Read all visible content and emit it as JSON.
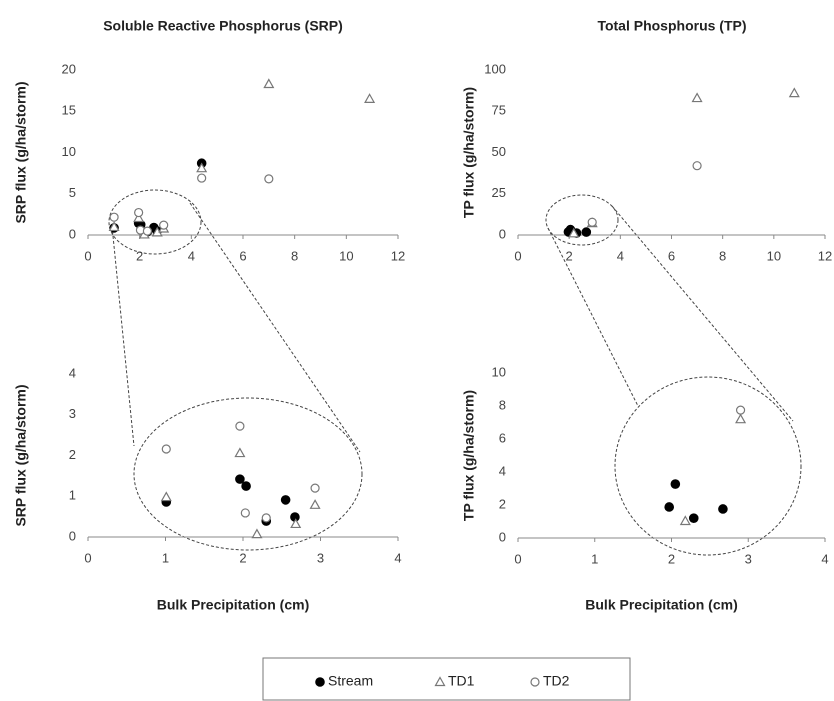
{
  "chart_data": [
    {
      "type": "scatter",
      "title": "Soluble Reactive Phosphorus (SRP)",
      "ylabel": "SRP flux (g/ha/storm)",
      "xlim": [
        0,
        12
      ],
      "xticks": [
        0,
        2,
        4,
        6,
        8,
        10,
        12
      ],
      "ylim": [
        0,
        20
      ],
      "yticks": [
        0,
        5,
        10,
        15,
        20
      ],
      "series": [
        {
          "name": "Stream",
          "marker": "circle-filled",
          "color": "#000000",
          "x": [
            1.01,
            1.96,
            2.04,
            2.3,
            2.55,
            2.67,
            4.4
          ],
          "values": [
            0.86,
            1.42,
            1.25,
            0.39,
            0.91,
            0.49,
            8.7
          ]
        },
        {
          "name": "TD1",
          "marker": "triangle-open",
          "color": "#777777",
          "x": [
            1.01,
            1.96,
            2.18,
            2.68,
            2.93,
            4.4,
            7.0,
            10.9
          ],
          "values": [
            0.98,
            2.06,
            0.07,
            0.32,
            0.79,
            8.1,
            18.3,
            16.5
          ]
        },
        {
          "name": "TD2",
          "marker": "circle-open",
          "color": "#777777",
          "x": [
            1.01,
            1.96,
            2.03,
            2.3,
            2.93,
            4.4,
            7.0
          ],
          "values": [
            2.16,
            2.72,
            0.59,
            0.47,
            1.2,
            6.9,
            6.8
          ]
        }
      ]
    },
    {
      "type": "scatter",
      "title": "Total Phosphorus (TP)",
      "ylabel": "TP flux (g/ha/storm)",
      "xlim": [
        0,
        12
      ],
      "xticks": [
        0,
        2,
        4,
        6,
        8,
        10,
        12
      ],
      "ylim": [
        0,
        100
      ],
      "yticks": [
        0,
        25,
        50,
        75,
        100
      ],
      "series": [
        {
          "name": "Stream",
          "marker": "circle-filled",
          "color": "#000000",
          "x": [
            1.97,
            2.05,
            2.29,
            2.67
          ],
          "values": [
            1.88,
            3.27,
            1.2,
            1.76
          ]
        },
        {
          "name": "TD1",
          "marker": "triangle-open",
          "color": "#777777",
          "x": [
            2.18,
            2.9,
            7.0,
            10.8
          ],
          "values": [
            1.03,
            7.2,
            83,
            86
          ]
        },
        {
          "name": "TD2",
          "marker": "circle-open",
          "color": "#777777",
          "x": [
            2.9,
            7.0
          ],
          "values": [
            7.75,
            42
          ]
        }
      ]
    },
    {
      "type": "scatter",
      "ylabel": "SRP flux (g/ha/storm)",
      "xlabel": "Bulk Precipitation (cm)",
      "xlim": [
        0,
        4
      ],
      "xticks": [
        0,
        1,
        2,
        3,
        4
      ],
      "ylim": [
        0,
        4
      ],
      "yticks": [
        0,
        1,
        2,
        3,
        4
      ],
      "series": [
        {
          "name": "Stream",
          "marker": "circle-filled",
          "color": "#000000",
          "x": [
            1.01,
            1.96,
            2.04,
            2.3,
            2.55,
            2.67
          ],
          "values": [
            0.86,
            1.42,
            1.25,
            0.39,
            0.91,
            0.49
          ]
        },
        {
          "name": "TD1",
          "marker": "triangle-open",
          "color": "#777777",
          "x": [
            1.01,
            1.96,
            2.18,
            2.68,
            2.93
          ],
          "values": [
            0.98,
            2.06,
            0.07,
            0.32,
            0.79
          ]
        },
        {
          "name": "TD2",
          "marker": "circle-open",
          "color": "#777777",
          "x": [
            1.01,
            1.96,
            2.03,
            2.3,
            2.93
          ],
          "values": [
            2.16,
            2.72,
            0.59,
            0.47,
            1.2
          ]
        }
      ]
    },
    {
      "type": "scatter",
      "ylabel": "TP flux (g/ha/storm)",
      "xlabel": "Bulk Precipitation (cm)",
      "xlim": [
        0,
        4
      ],
      "xticks": [
        0,
        1,
        2,
        3,
        4
      ],
      "ylim": [
        0,
        10
      ],
      "yticks": [
        0,
        2,
        4,
        6,
        8,
        10
      ],
      "series": [
        {
          "name": "Stream",
          "marker": "circle-filled",
          "color": "#000000",
          "x": [
            1.97,
            2.05,
            2.29,
            2.67
          ],
          "values": [
            1.88,
            3.27,
            1.2,
            1.76
          ]
        },
        {
          "name": "TD1",
          "marker": "triangle-open",
          "color": "#777777",
          "x": [
            2.18,
            2.9
          ],
          "values": [
            1.03,
            7.2
          ]
        },
        {
          "name": "TD2",
          "marker": "circle-open",
          "color": "#777777",
          "x": [
            2.9
          ],
          "values": [
            7.75
          ]
        }
      ]
    }
  ]
}
